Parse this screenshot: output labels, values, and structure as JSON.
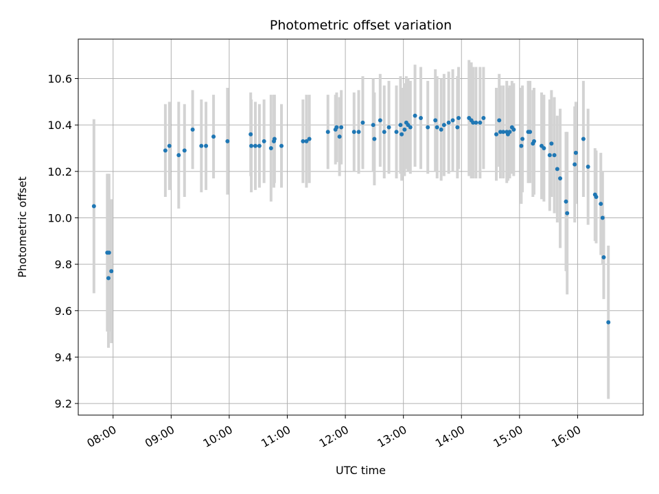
{
  "chart_data": {
    "type": "scatter",
    "title": "Photometric offset variation",
    "xlabel": "UTC time",
    "ylabel": "Photometric offset",
    "grid": true,
    "x_unit": "hours (UTC)",
    "xlim": [
      7.4,
      17.13
    ],
    "ylim": [
      9.15,
      10.77
    ],
    "x_ticks": [
      8,
      9,
      10,
      11,
      12,
      13,
      14,
      15,
      16
    ],
    "x_tick_labels": [
      "08:00",
      "09:00",
      "10:00",
      "11:00",
      "12:00",
      "13:00",
      "14:00",
      "15:00",
      "16:00"
    ],
    "y_ticks": [
      9.2,
      9.4,
      9.6,
      9.8,
      10.0,
      10.2,
      10.4,
      10.6
    ],
    "y_tick_labels": [
      "9.2",
      "9.4",
      "9.6",
      "9.8",
      "10.0",
      "10.2",
      "10.4",
      "10.6"
    ],
    "marker_color": "#1f77b4",
    "errorbar_color": "#d3d3d3",
    "points": [
      [
        7.67,
        10.05,
        0.375
      ],
      [
        7.9,
        9.85,
        0.34
      ],
      [
        7.92,
        9.74,
        0.3
      ],
      [
        7.93,
        9.85,
        0.34
      ],
      [
        7.97,
        9.77,
        0.31
      ],
      [
        8.9,
        10.29,
        0.2
      ],
      [
        8.97,
        10.31,
        0.19
      ],
      [
        9.13,
        10.27,
        0.23
      ],
      [
        9.23,
        10.29,
        0.2
      ],
      [
        9.37,
        10.38,
        0.17
      ],
      [
        9.52,
        10.31,
        0.2
      ],
      [
        9.6,
        10.31,
        0.19
      ],
      [
        9.73,
        10.35,
        0.18
      ],
      [
        9.97,
        10.33,
        0.23
      ],
      [
        10.37,
        10.36,
        0.18
      ],
      [
        10.38,
        10.31,
        0.2
      ],
      [
        10.45,
        10.31,
        0.19
      ],
      [
        10.52,
        10.31,
        0.18
      ],
      [
        10.6,
        10.33,
        0.18
      ],
      [
        10.72,
        10.3,
        0.23
      ],
      [
        10.77,
        10.33,
        0.2
      ],
      [
        10.78,
        10.34,
        0.19
      ],
      [
        10.9,
        10.31,
        0.18
      ],
      [
        11.27,
        10.33,
        0.18
      ],
      [
        11.33,
        10.33,
        0.2
      ],
      [
        11.38,
        10.34,
        0.19
      ],
      [
        11.7,
        10.37,
        0.16
      ],
      [
        11.83,
        10.38,
        0.15
      ],
      [
        11.85,
        10.39,
        0.15
      ],
      [
        11.9,
        10.35,
        0.17
      ],
      [
        11.93,
        10.39,
        0.16
      ],
      [
        12.15,
        10.37,
        0.17
      ],
      [
        12.23,
        10.37,
        0.18
      ],
      [
        12.3,
        10.41,
        0.2
      ],
      [
        12.48,
        10.4,
        0.2
      ],
      [
        12.5,
        10.34,
        0.2
      ],
      [
        12.6,
        10.42,
        0.2
      ],
      [
        12.67,
        10.37,
        0.2
      ],
      [
        12.75,
        10.39,
        0.2
      ],
      [
        12.88,
        10.37,
        0.2
      ],
      [
        12.95,
        10.4,
        0.21
      ],
      [
        12.97,
        10.36,
        0.2
      ],
      [
        13.02,
        10.38,
        0.2
      ],
      [
        13.05,
        10.41,
        0.2
      ],
      [
        13.08,
        10.4,
        0.2
      ],
      [
        13.12,
        10.39,
        0.2
      ],
      [
        13.2,
        10.44,
        0.22
      ],
      [
        13.3,
        10.43,
        0.22
      ],
      [
        13.42,
        10.39,
        0.2
      ],
      [
        13.55,
        10.42,
        0.22
      ],
      [
        13.58,
        10.39,
        0.22
      ],
      [
        13.65,
        10.38,
        0.22
      ],
      [
        13.7,
        10.4,
        0.22
      ],
      [
        13.78,
        10.41,
        0.22
      ],
      [
        13.85,
        10.42,
        0.22
      ],
      [
        13.93,
        10.39,
        0.22
      ],
      [
        13.95,
        10.43,
        0.22
      ],
      [
        14.13,
        10.43,
        0.25
      ],
      [
        14.17,
        10.42,
        0.25
      ],
      [
        14.2,
        10.41,
        0.24
      ],
      [
        14.25,
        10.41,
        0.24
      ],
      [
        14.32,
        10.41,
        0.24
      ],
      [
        14.38,
        10.43,
        0.22
      ],
      [
        14.6,
        10.36,
        0.2
      ],
      [
        14.65,
        10.42,
        0.2
      ],
      [
        14.67,
        10.37,
        0.2
      ],
      [
        14.72,
        10.37,
        0.2
      ],
      [
        14.78,
        10.37,
        0.22
      ],
      [
        14.8,
        10.36,
        0.2
      ],
      [
        14.83,
        10.37,
        0.2
      ],
      [
        14.87,
        10.39,
        0.2
      ],
      [
        14.9,
        10.38,
        0.2
      ],
      [
        15.03,
        10.31,
        0.25
      ],
      [
        15.05,
        10.34,
        0.23
      ],
      [
        15.15,
        10.37,
        0.22
      ],
      [
        15.18,
        10.37,
        0.22
      ],
      [
        15.23,
        10.32,
        0.23
      ],
      [
        15.25,
        10.33,
        0.23
      ],
      [
        15.38,
        10.31,
        0.23
      ],
      [
        15.42,
        10.3,
        0.23
      ],
      [
        15.52,
        10.27,
        0.24
      ],
      [
        15.55,
        10.32,
        0.23
      ],
      [
        15.6,
        10.27,
        0.25
      ],
      [
        15.65,
        10.21,
        0.23
      ],
      [
        15.7,
        10.17,
        0.3
      ],
      [
        15.8,
        10.07,
        0.3
      ],
      [
        15.82,
        10.02,
        0.35
      ],
      [
        15.95,
        10.23,
        0.25
      ],
      [
        15.97,
        10.28,
        0.22
      ],
      [
        16.1,
        10.34,
        0.25
      ],
      [
        16.18,
        10.22,
        0.25
      ],
      [
        16.3,
        10.1,
        0.2
      ],
      [
        16.32,
        10.09,
        0.2
      ],
      [
        16.4,
        10.06,
        0.22
      ],
      [
        16.43,
        10.0,
        0.2
      ],
      [
        16.45,
        9.83,
        0.18
      ],
      [
        16.53,
        9.55,
        0.33
      ]
    ]
  }
}
